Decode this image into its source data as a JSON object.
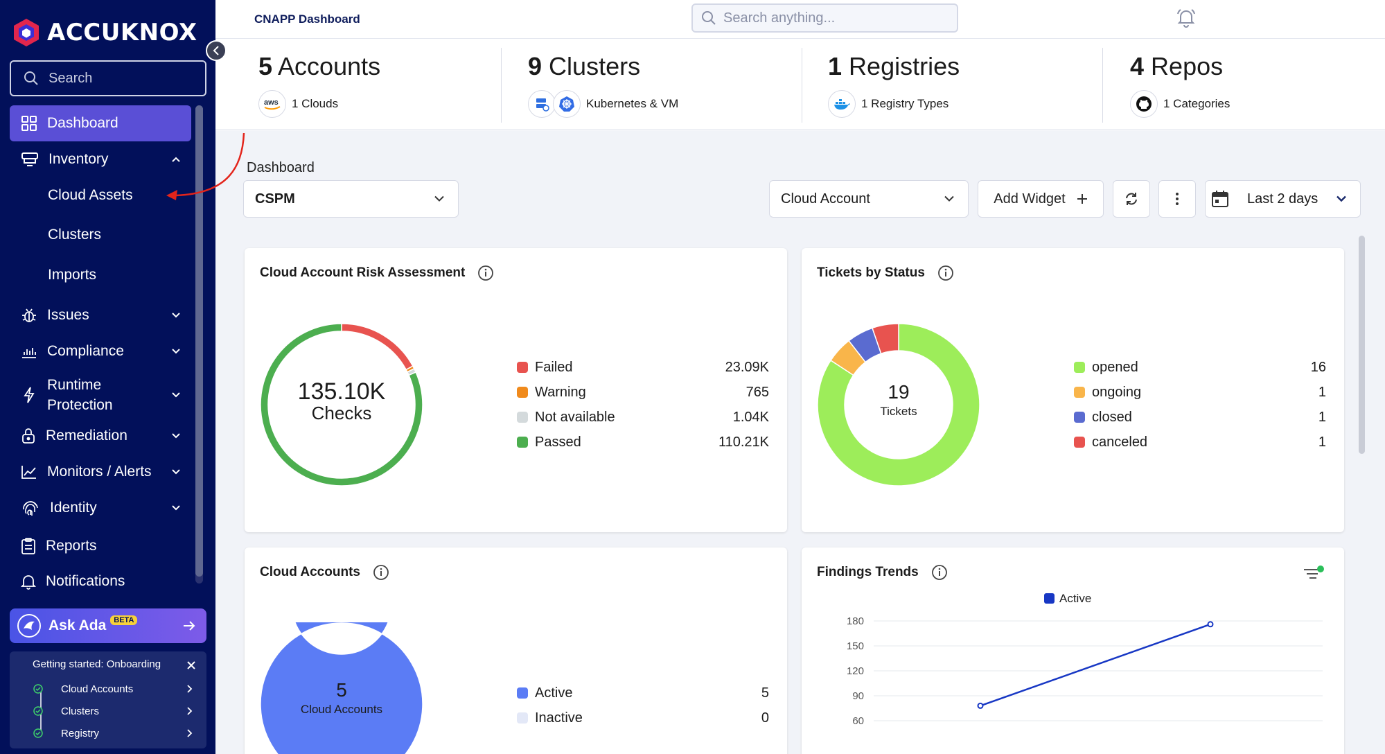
{
  "sidebar": {
    "logo_text": "ACCUKNOX",
    "search_placeholder": "Search",
    "items": [
      {
        "label": "Dashboard",
        "icon": "grid-icon"
      },
      {
        "label": "Inventory",
        "icon": "inventory-icon"
      },
      {
        "label": "Cloud Assets"
      },
      {
        "label": "Clusters"
      },
      {
        "label": "Imports"
      },
      {
        "label": "Issues",
        "icon": "bug-icon"
      },
      {
        "label": "Compliance",
        "icon": "chart-icon"
      },
      {
        "label": "Runtime",
        "label2": "Protection",
        "icon": "runtime-icon"
      },
      {
        "label": "Remediation",
        "icon": "lock-icon"
      },
      {
        "label": "Monitors / Alerts",
        "icon": "trend-icon"
      },
      {
        "label": "Identity",
        "icon": "fingerprint-icon"
      },
      {
        "label": "Reports",
        "icon": "clipboard-icon"
      },
      {
        "label": "Notifications",
        "icon": "bell-icon"
      }
    ],
    "ask_ada": {
      "label": "Ask Ada",
      "badge": "BETA"
    },
    "onboarding": {
      "title": "Getting started: Onboarding",
      "steps": [
        "Cloud Accounts",
        "Clusters",
        "Registry"
      ]
    }
  },
  "topbar": {
    "title": "CNAPP Dashboard",
    "search_placeholder": "Search anything..."
  },
  "stats": [
    {
      "count": "5",
      "label": "Accounts",
      "sub": "1 Clouds"
    },
    {
      "count": "9",
      "label": "Clusters",
      "sub": "Kubernetes & VM"
    },
    {
      "count": "1",
      "label": "Registries",
      "sub": "1 Registry Types"
    },
    {
      "count": "4",
      "label": "Repos",
      "sub": "1 Categories"
    }
  ],
  "toolbar": {
    "dashboard_label": "Dashboard",
    "dashboard_select": "CSPM",
    "account_select": "Cloud Account",
    "add_widget": "Add Widget",
    "date_range": "Last 2 days"
  },
  "widgets": {
    "risk": {
      "title": "Cloud Account Risk Assessment",
      "center_value": "135.10K",
      "center_label": "Checks",
      "legend": [
        {
          "name": "Failed",
          "value": "23.09K",
          "color": "#e8534f"
        },
        {
          "name": "Warning",
          "value": "765",
          "color": "#f08a1c"
        },
        {
          "name": "Not available",
          "value": "1.04K",
          "color": "#d4dadc"
        },
        {
          "name": "Passed",
          "value": "110.21K",
          "color": "#4cae4f"
        }
      ]
    },
    "tickets": {
      "title": "Tickets by Status",
      "center_value": "19",
      "center_label": "Tickets",
      "legend": [
        {
          "name": "opened",
          "value": "16",
          "color": "#9ded5a"
        },
        {
          "name": "ongoing",
          "value": "1",
          "color": "#f9b54a"
        },
        {
          "name": "closed",
          "value": "1",
          "color": "#5a6bd0"
        },
        {
          "name": "canceled",
          "value": "1",
          "color": "#e8534f"
        }
      ]
    },
    "accounts": {
      "title": "Cloud Accounts",
      "center_value": "5",
      "center_label": "Cloud Accounts",
      "legend": [
        {
          "name": "Active",
          "value": "5",
          "color": "#5b7cf5"
        },
        {
          "name": "Inactive",
          "value": "0",
          "color": "#e3e8f7"
        }
      ]
    },
    "trends": {
      "title": "Findings Trends"
    }
  },
  "chart_data": [
    {
      "type": "pie",
      "title": "Cloud Account Risk Assessment",
      "categories": [
        "Failed",
        "Warning",
        "Not available",
        "Passed"
      ],
      "values": [
        23090,
        765,
        1040,
        110210
      ]
    },
    {
      "type": "pie",
      "title": "Tickets by Status",
      "categories": [
        "opened",
        "ongoing",
        "closed",
        "canceled"
      ],
      "values": [
        16,
        1,
        1,
        1
      ]
    },
    {
      "type": "pie",
      "title": "Cloud Accounts",
      "categories": [
        "Active",
        "Inactive"
      ],
      "values": [
        5,
        0
      ]
    },
    {
      "type": "line",
      "title": "Findings Trends",
      "series": [
        {
          "name": "Active",
          "values": [
            78,
            176
          ],
          "color": "#1737c4"
        }
      ],
      "y_ticks": [
        "180",
        "150",
        "120",
        "90",
        "60"
      ],
      "ylim": [
        60,
        180
      ],
      "legend": "top"
    }
  ]
}
